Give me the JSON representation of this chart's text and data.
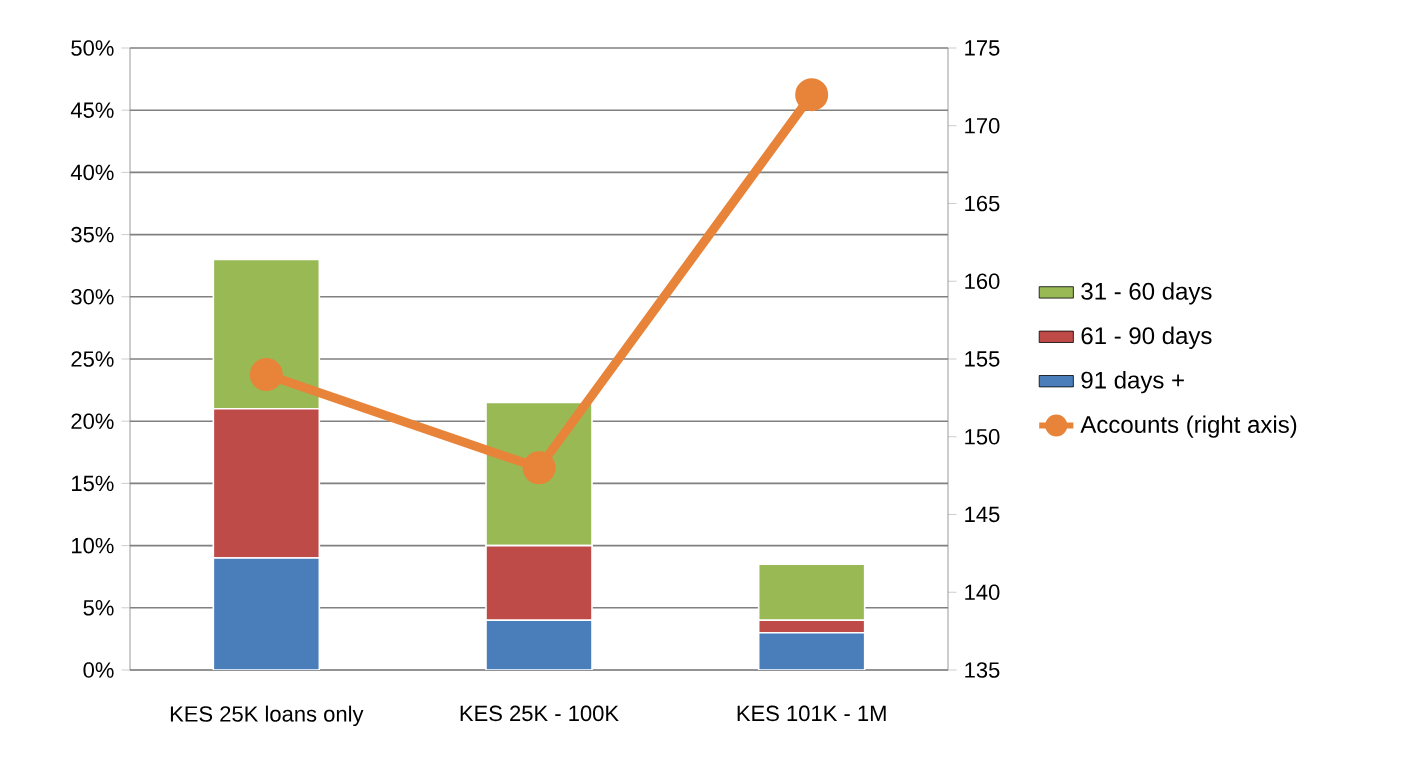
{
  "chart_data": {
    "type": "bar",
    "stacked": true,
    "categories": [
      "KES 25K loans only",
      "KES 25K - 100K",
      "KES 101K - 1M"
    ],
    "series": [
      {
        "name": "91 days +",
        "color": "#4a7ebb",
        "values": [
          9,
          4,
          3
        ]
      },
      {
        "name": "61 - 90 days",
        "color": "#be4b48",
        "values": [
          12,
          6,
          1
        ]
      },
      {
        "name": "31 - 60 days",
        "color": "#98b954",
        "values": [
          12,
          11.5,
          4.5
        ]
      },
      {
        "name": "Accounts (right axis)",
        "type": "line",
        "axis": "y2",
        "color": "#e8843a",
        "values": [
          154,
          148,
          172
        ]
      }
    ],
    "ylim": [
      0,
      50
    ],
    "yticks": [
      {
        "value": 0,
        "label": "0%"
      },
      {
        "value": 5,
        "label": "5%"
      },
      {
        "value": 10,
        "label": "10%"
      },
      {
        "value": 15,
        "label": "15%"
      },
      {
        "value": 20,
        "label": "20%"
      },
      {
        "value": 25,
        "label": "25%"
      },
      {
        "value": 30,
        "label": "30%"
      },
      {
        "value": 35,
        "label": "35%"
      },
      {
        "value": 40,
        "label": "40%"
      },
      {
        "value": 45,
        "label": "45%"
      },
      {
        "value": 50,
        "label": "50%"
      }
    ],
    "y2lim": [
      135,
      175
    ],
    "y2ticks": [
      135,
      140,
      145,
      150,
      155,
      160,
      165,
      170,
      175
    ],
    "grid": "y",
    "legend": "right",
    "marker": "circle"
  }
}
